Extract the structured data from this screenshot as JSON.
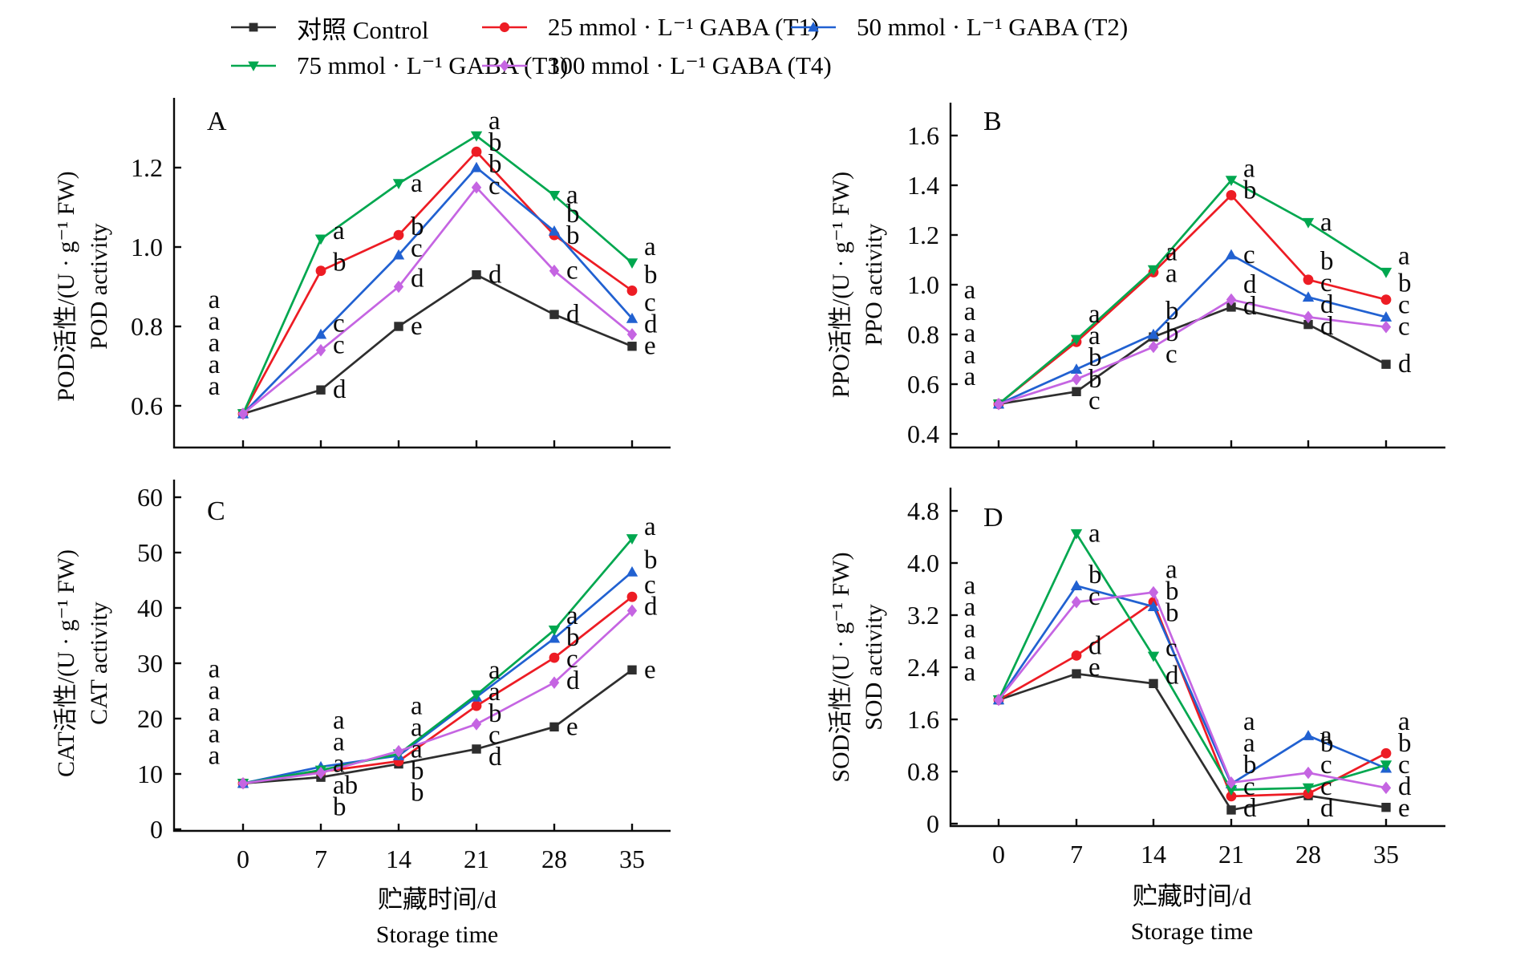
{
  "legend": {
    "items": [
      {
        "id": "control",
        "label": "对照 Control",
        "color": "#2e2e2e",
        "marker": "square"
      },
      {
        "id": "t1",
        "label": "25 mmol · L⁻¹ GABA (T1)",
        "color": "#ed1c24",
        "marker": "circle"
      },
      {
        "id": "t2",
        "label": "50 mmol · L⁻¹  GABA (T2)",
        "color": "#2161d1",
        "marker": "triangle-up"
      },
      {
        "id": "t3",
        "label": "75 mmol · L⁻¹ GABA (T3)",
        "color": "#00a74f",
        "marker": "triangle-down"
      },
      {
        "id": "t4",
        "label": "100 mmol · L⁻¹  GABA (T4)",
        "color": "#c565e2",
        "marker": "diamond"
      }
    ]
  },
  "xaxis": {
    "label_zh": "贮藏时间/d",
    "label_en": "Storage time",
    "ticks": [
      "0",
      "7",
      "14",
      "21",
      "28",
      "35"
    ]
  },
  "chart_data": [
    {
      "id": "A",
      "panel": "A",
      "type": "line",
      "ylabel_zh": "POD活性/(U · g⁻¹ FW)",
      "ylabel_en": "POD activity",
      "x": [
        0,
        7,
        14,
        21,
        28,
        35
      ],
      "yticks": [
        "0.6",
        "0.8",
        "1.0",
        "1.2"
      ],
      "ylim": [
        0.5,
        1.38
      ],
      "series": [
        {
          "name": "对照 Control",
          "values": [
            0.58,
            0.64,
            0.8,
            0.93,
            0.83,
            0.75
          ],
          "letters": [
            "a",
            "d",
            "e",
            "d",
            "d",
            "e"
          ]
        },
        {
          "name": "25 mmol · L⁻¹ GABA (T1)",
          "values": [
            0.58,
            0.94,
            1.03,
            1.24,
            1.03,
            0.89
          ],
          "letters": [
            "a",
            "b",
            "b",
            "b",
            "b",
            "b"
          ]
        },
        {
          "name": "50 mmol · L⁻¹ GABA (T2)",
          "values": [
            0.58,
            0.78,
            0.98,
            1.2,
            1.04,
            0.82
          ],
          "letters": [
            "a",
            "c",
            "c",
            "b",
            "b",
            "c"
          ]
        },
        {
          "name": "75 mmol · L⁻¹ GABA (T3)",
          "values": [
            0.58,
            1.02,
            1.16,
            1.28,
            1.13,
            0.96
          ],
          "letters": [
            "a",
            "a",
            "a",
            "a",
            "a",
            "a"
          ]
        },
        {
          "name": "100 mmol · L⁻¹ GABA (T4)",
          "values": [
            0.58,
            0.74,
            0.9,
            1.15,
            0.94,
            0.78
          ],
          "letters": [
            "a",
            "c",
            "d",
            "c",
            "c",
            "d"
          ]
        }
      ]
    },
    {
      "id": "B",
      "panel": "B",
      "type": "line",
      "ylabel_zh": "PPO活性/(U · g⁻¹ FW)",
      "ylabel_en": "PPO activity",
      "x": [
        0,
        7,
        14,
        21,
        28,
        35
      ],
      "yticks": [
        "0.4",
        "0.6",
        "0.8",
        "1.0",
        "1.2",
        "1.4",
        "1.6"
      ],
      "ylim": [
        0.4,
        1.6
      ],
      "series": [
        {
          "name": "对照 Control",
          "values": [
            0.52,
            0.57,
            0.79,
            0.91,
            0.84,
            0.68
          ],
          "letters": [
            "a",
            "c",
            "b",
            "d",
            "d",
            "d"
          ]
        },
        {
          "name": "25 mmol · L⁻¹ GABA (T1)",
          "values": [
            0.52,
            0.77,
            1.05,
            1.36,
            1.02,
            0.94
          ],
          "letters": [
            "a",
            "a",
            "a",
            "b",
            "b",
            "b"
          ]
        },
        {
          "name": "50 mmol · L⁻¹ GABA (T2)",
          "values": [
            0.52,
            0.66,
            0.8,
            1.12,
            0.95,
            0.87
          ],
          "letters": [
            "a",
            "b",
            "b",
            "c",
            "c",
            "c"
          ]
        },
        {
          "name": "75 mmol · L⁻¹ GABA (T3)",
          "values": [
            0.52,
            0.78,
            1.06,
            1.42,
            1.25,
            1.05
          ],
          "letters": [
            "a",
            "a",
            "a",
            "a",
            "a",
            "a"
          ]
        },
        {
          "name": "100 mmol · L⁻¹ GABA (T4)",
          "values": [
            0.52,
            0.62,
            0.75,
            0.94,
            0.87,
            0.83
          ],
          "letters": [
            "a",
            "b",
            "c",
            "d",
            "d",
            "c"
          ]
        }
      ]
    },
    {
      "id": "C",
      "panel": "C",
      "type": "line",
      "ylabel_zh": "CAT活性/(U · g⁻¹ FW)",
      "ylabel_en": "CAT activity",
      "x": [
        0,
        7,
        14,
        21,
        28,
        35
      ],
      "yticks": [
        "0",
        "10",
        "20",
        "30",
        "40",
        "50",
        "60"
      ],
      "ylim": [
        0,
        60
      ],
      "series": [
        {
          "name": "对照 Control",
          "values": [
            8.3,
            9.4,
            11.8,
            14.5,
            18.5,
            28.8
          ],
          "letters": [
            "a",
            "b",
            "b",
            "d",
            "e",
            "e"
          ]
        },
        {
          "name": "25 mmol · L⁻¹ GABA (T1)",
          "values": [
            8.3,
            10.4,
            12.3,
            22.3,
            31,
            42
          ],
          "letters": [
            "a",
            "a",
            "b",
            "b",
            "c",
            "c"
          ]
        },
        {
          "name": "50 mmol · L⁻¹ GABA (T2)",
          "values": [
            8.3,
            11.3,
            13.3,
            23.9,
            34.5,
            46.5
          ],
          "letters": [
            "a",
            "a",
            "a",
            "a",
            "b",
            "b"
          ]
        },
        {
          "name": "75 mmol · L⁻¹ GABA (T3)",
          "values": [
            8.3,
            10.7,
            13.6,
            24.3,
            36,
            52.5
          ],
          "letters": [
            "a",
            "a",
            "a",
            "a",
            "a",
            "a"
          ]
        },
        {
          "name": "100 mmol · L⁻¹ GABA (T4)",
          "values": [
            8.3,
            10.2,
            14.1,
            19,
            26.5,
            39.5
          ],
          "letters": [
            "a",
            "ab",
            "a",
            "c",
            "d",
            "d"
          ]
        }
      ]
    },
    {
      "id": "D",
      "panel": "D",
      "type": "line",
      "ylabel_zh": "SOD活性/(U · g⁻¹ FW)",
      "ylabel_en": "SOD activity",
      "x": [
        0,
        7,
        14,
        21,
        28,
        35
      ],
      "yticks": [
        "0",
        "0.8",
        "1.6",
        "2.4",
        "3.2",
        "4.0",
        "4.8"
      ],
      "ylim": [
        0,
        4.8
      ],
      "series": [
        {
          "name": "对照 Control",
          "values": [
            1.9,
            2.3,
            2.15,
            0.21,
            0.43,
            0.25
          ],
          "letters": [
            "a",
            "e",
            "d",
            "d",
            "d",
            "e"
          ]
        },
        {
          "name": "25 mmol · L⁻¹ GABA (T1)",
          "values": [
            1.9,
            2.58,
            3.4,
            0.42,
            0.46,
            1.08
          ],
          "letters": [
            "a",
            "d",
            "b",
            "c",
            "c",
            "a"
          ]
        },
        {
          "name": "50 mmol · L⁻¹ GABA (T2)",
          "values": [
            1.9,
            3.65,
            3.33,
            0.61,
            1.35,
            0.85
          ],
          "letters": [
            "a",
            "b",
            "b",
            "a",
            "a",
            "c"
          ]
        },
        {
          "name": "75 mmol · L⁻¹ GABA (T3)",
          "values": [
            1.9,
            4.45,
            2.57,
            0.52,
            0.55,
            0.9
          ],
          "letters": [
            "a",
            "a",
            "c",
            "b",
            "c",
            "b"
          ]
        },
        {
          "name": "100 mmol · L⁻¹ GABA (T4)",
          "values": [
            1.9,
            3.4,
            3.55,
            0.63,
            0.78,
            0.55
          ],
          "letters": [
            "a",
            "c",
            "a",
            "a",
            "b",
            "d"
          ]
        }
      ]
    }
  ]
}
